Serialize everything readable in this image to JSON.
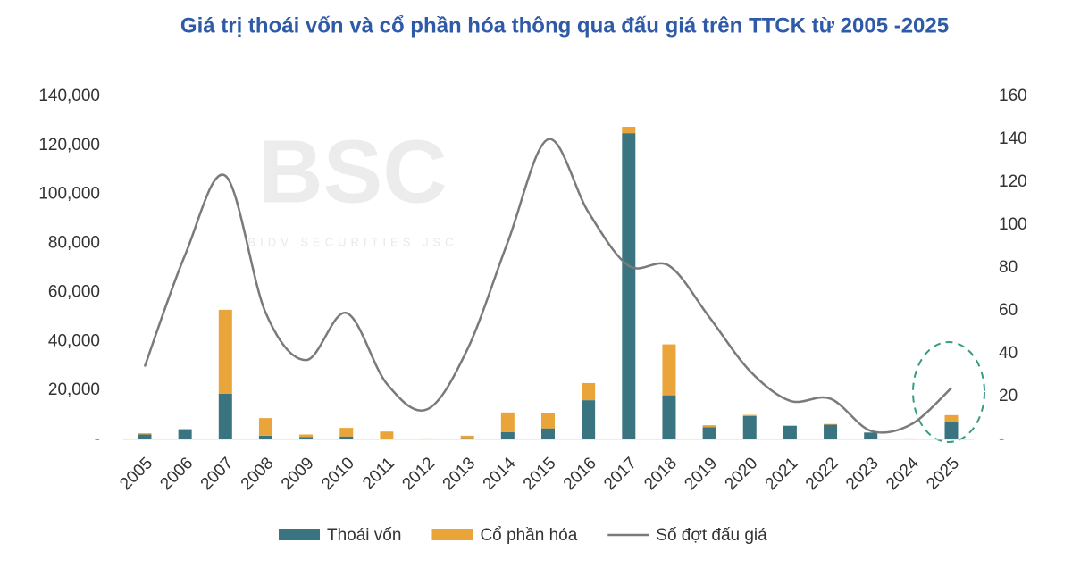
{
  "chart_data": {
    "type": "bar-line",
    "title": "Giá trị thoái vốn và cổ phần hóa thông qua đấu giá trên TTCK từ 2005 -2025",
    "watermark": "BSC",
    "watermark_subtitle": "BIDV SECURITIES JSC",
    "categories": [
      "2005",
      "2006",
      "2007",
      "2008",
      "2009",
      "2010",
      "2011",
      "2012",
      "2013",
      "2014",
      "2015",
      "2016",
      "2017",
      "2018",
      "2019",
      "2020",
      "2021",
      "2022",
      "2023",
      "2024",
      "2025"
    ],
    "series": [
      {
        "name": "Thoái vốn",
        "kind": "bar",
        "color": "#3a7480",
        "values": [
          2000,
          4000,
          18600,
          1500,
          1000,
          1200,
          300,
          200,
          500,
          3000,
          4500,
          16000,
          125000,
          18000,
          5000,
          9500,
          5500,
          6000,
          2800,
          300,
          7000
        ]
      },
      {
        "name": "Cổ phần hóa",
        "kind": "bar",
        "color": "#eaa53a",
        "values": [
          500,
          300,
          34300,
          7200,
          1000,
          3500,
          2900,
          200,
          1000,
          8000,
          6100,
          7000,
          2600,
          20800,
          800,
          500,
          200,
          300,
          0,
          100,
          2900
        ]
      },
      {
        "name": "Số đợt đấu giá",
        "kind": "line",
        "axis": "y2",
        "color": "#7a7a7a",
        "values": [
          34,
          86,
          123,
          59,
          37,
          59,
          26,
          14,
          42,
          92,
          140,
          106,
          81,
          81,
          57,
          32,
          18,
          19,
          4,
          7,
          24
        ]
      }
    ],
    "ylim": [
      0,
      140000
    ],
    "yticks": [
      {
        "value": 0,
        "label": "-"
      },
      {
        "value": 20000,
        "label": "20,000"
      },
      {
        "value": 40000,
        "label": "40,000"
      },
      {
        "value": 60000,
        "label": "60,000"
      },
      {
        "value": 80000,
        "label": "80,000"
      },
      {
        "value": 100000,
        "label": "100,000"
      },
      {
        "value": 120000,
        "label": "120,000"
      },
      {
        "value": 140000,
        "label": "140,000"
      }
    ],
    "y2lim": [
      0,
      160
    ],
    "y2ticks": [
      {
        "value": 0,
        "label": "-"
      },
      20,
      40,
      60,
      80,
      100,
      120,
      140,
      160
    ],
    "grid": false,
    "legend": "bottom"
  }
}
